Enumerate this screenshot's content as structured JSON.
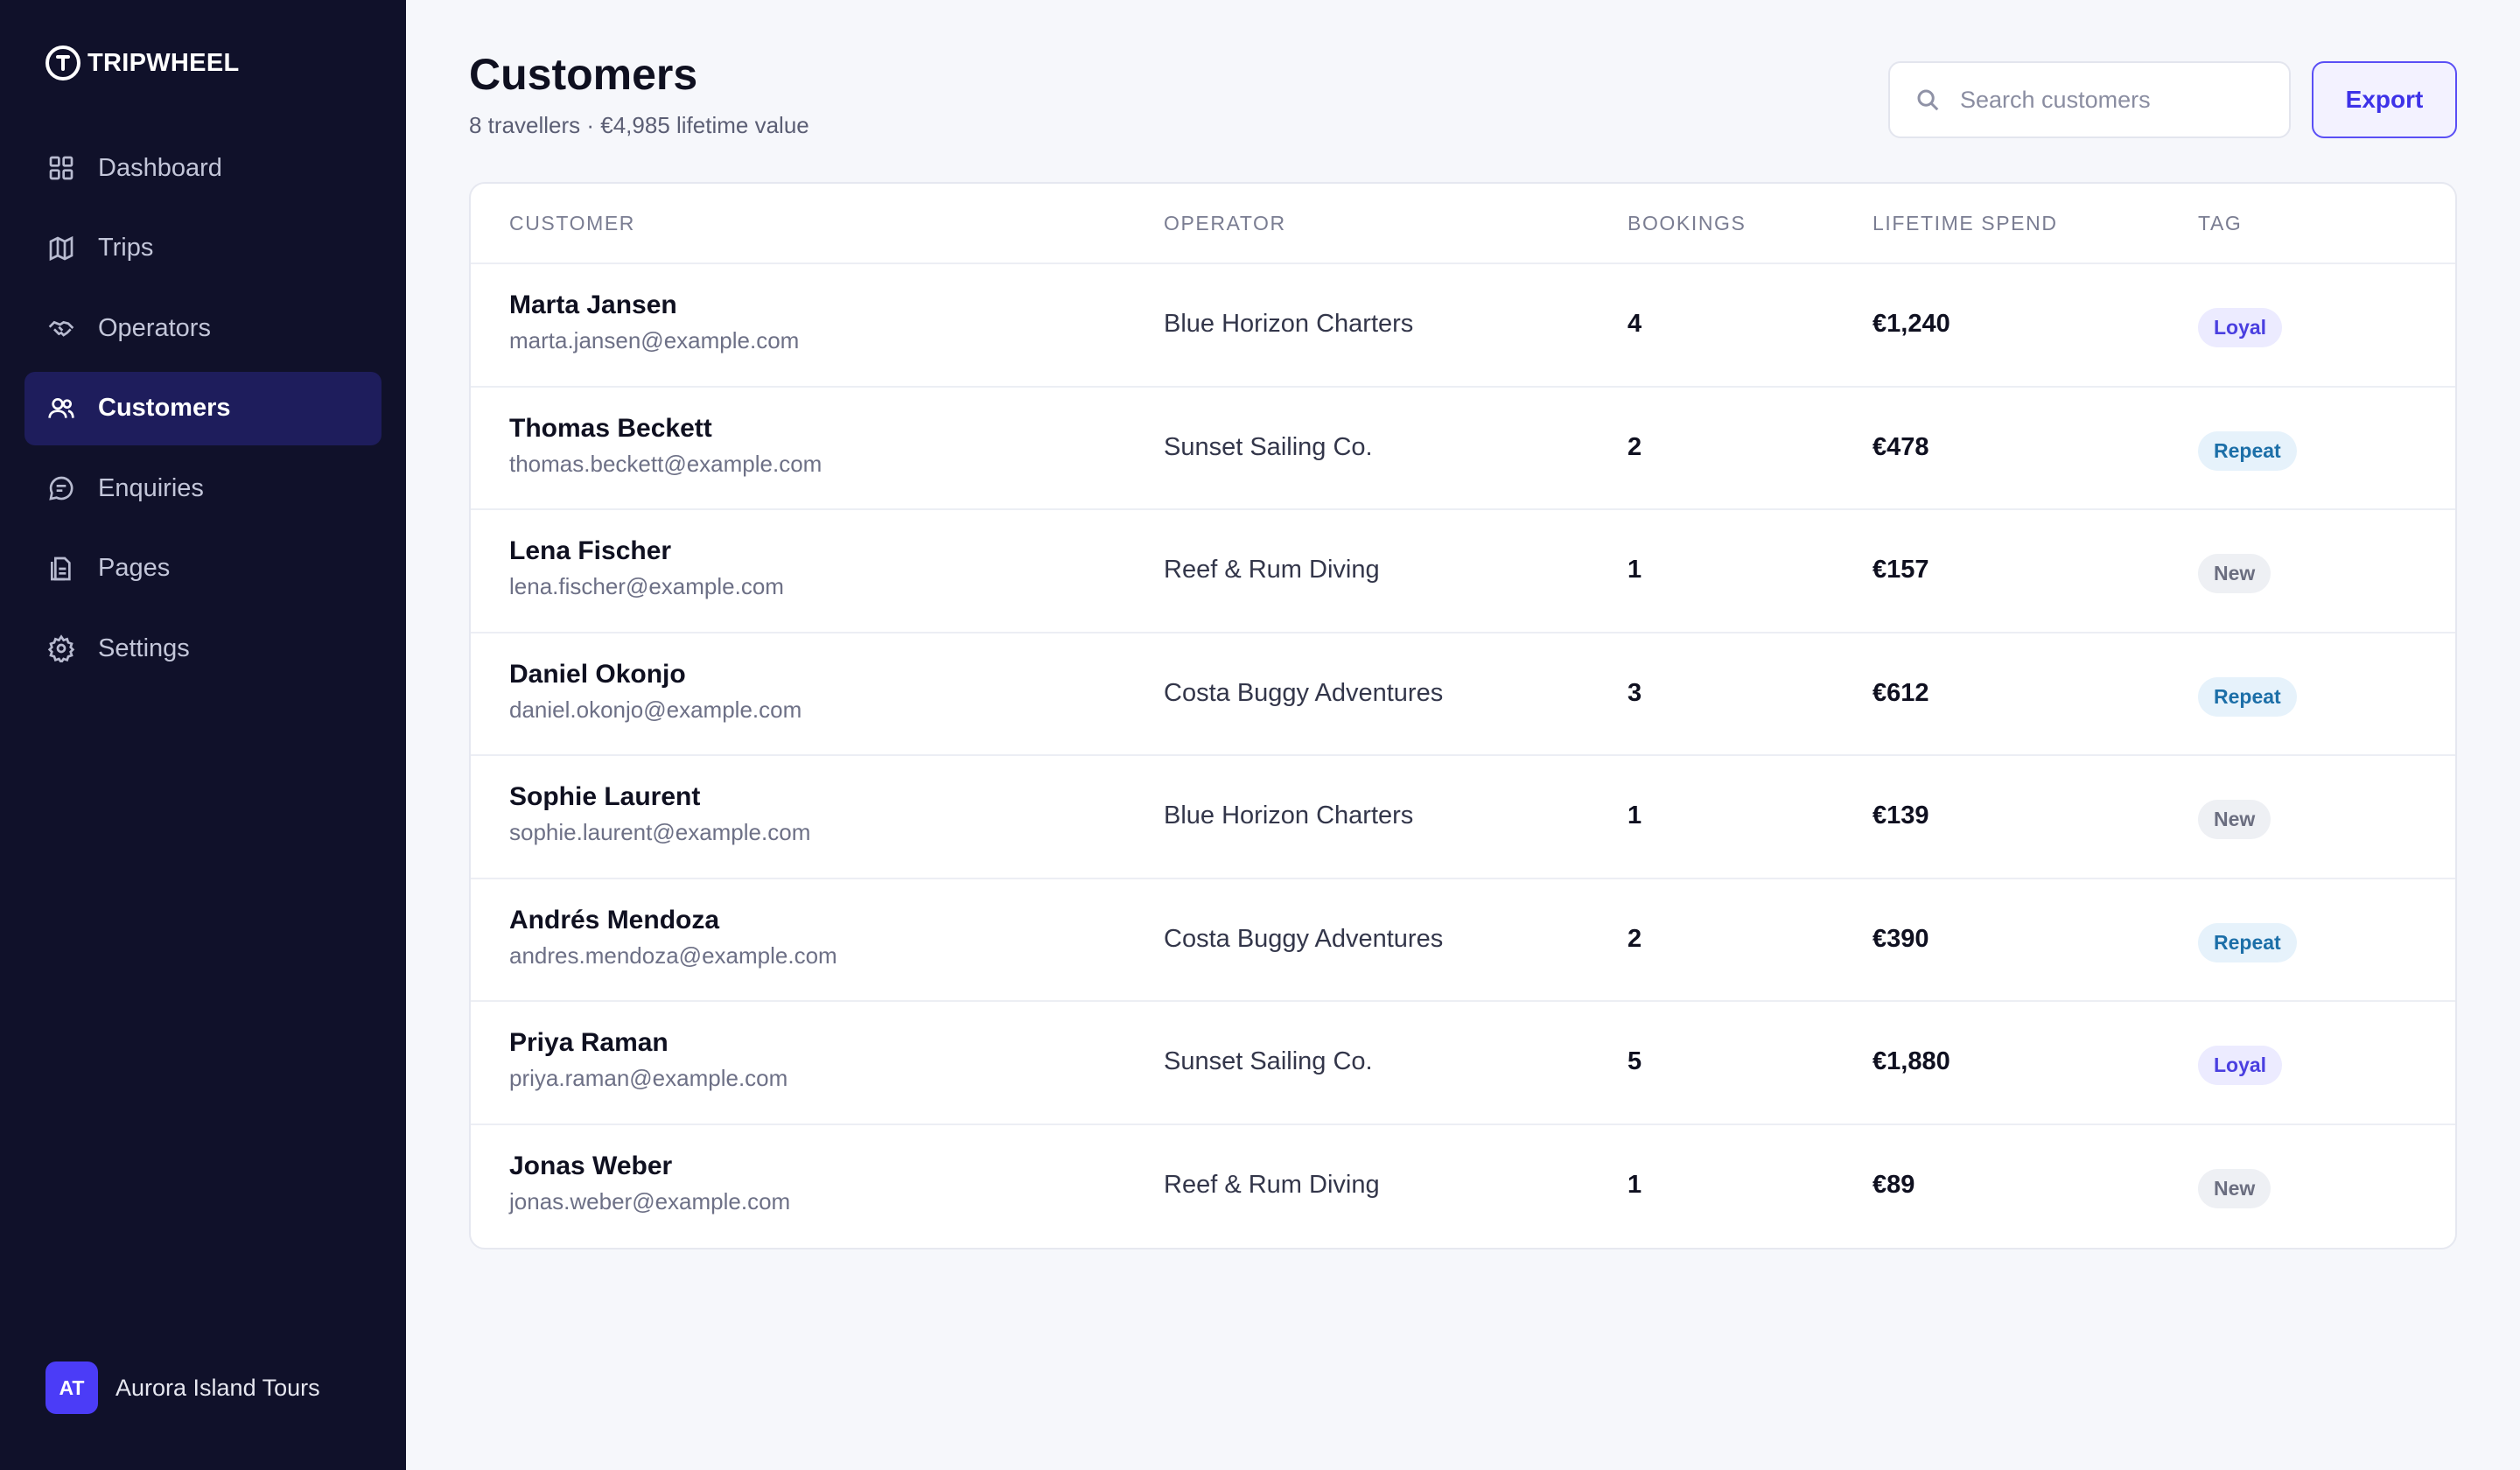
{
  "brand": {
    "name": "TRIPWHEEL"
  },
  "nav": [
    {
      "label": "Dashboard",
      "icon": "grid-icon",
      "active": false
    },
    {
      "label": "Trips",
      "icon": "map-icon",
      "active": false
    },
    {
      "label": "Operators",
      "icon": "handshake-icon",
      "active": false
    },
    {
      "label": "Customers",
      "icon": "users-icon",
      "active": true
    },
    {
      "label": "Enquiries",
      "icon": "chat-icon",
      "active": false
    },
    {
      "label": "Pages",
      "icon": "document-icon",
      "active": false
    },
    {
      "label": "Settings",
      "icon": "gear-icon",
      "active": false
    }
  ],
  "account": {
    "initials": "AT",
    "name": "Aurora Island Tours"
  },
  "header": {
    "title": "Customers",
    "subtitle": "8 travellers · €4,985 lifetime value",
    "search_placeholder": "Search customers",
    "search_value": "",
    "export_label": "Export"
  },
  "table": {
    "columns": [
      "CUSTOMER",
      "OPERATOR",
      "BOOKINGS",
      "LIFETIME SPEND",
      "TAG"
    ],
    "rows": [
      {
        "name": "Marta Jansen",
        "email": "marta.jansen@example.com",
        "operator": "Blue Horizon Charters",
        "bookings": "4",
        "spend": "€1,240",
        "tag": "Loyal",
        "tag_kind": "loyal"
      },
      {
        "name": "Thomas Beckett",
        "email": "thomas.beckett@example.com",
        "operator": "Sunset Sailing Co.",
        "bookings": "2",
        "spend": "€478",
        "tag": "Repeat",
        "tag_kind": "repeat"
      },
      {
        "name": "Lena Fischer",
        "email": "lena.fischer@example.com",
        "operator": "Reef & Rum Diving",
        "bookings": "1",
        "spend": "€157",
        "tag": "New",
        "tag_kind": "new"
      },
      {
        "name": "Daniel Okonjo",
        "email": "daniel.okonjo@example.com",
        "operator": "Costa Buggy Adventures",
        "bookings": "3",
        "spend": "€612",
        "tag": "Repeat",
        "tag_kind": "repeat"
      },
      {
        "name": "Sophie Laurent",
        "email": "sophie.laurent@example.com",
        "operator": "Blue Horizon Charters",
        "bookings": "1",
        "spend": "€139",
        "tag": "New",
        "tag_kind": "new"
      },
      {
        "name": "Andrés Mendoza",
        "email": "andres.mendoza@example.com",
        "operator": "Costa Buggy Adventures",
        "bookings": "2",
        "spend": "€390",
        "tag": "Repeat",
        "tag_kind": "repeat"
      },
      {
        "name": "Priya Raman",
        "email": "priya.raman@example.com",
        "operator": "Sunset Sailing Co.",
        "bookings": "5",
        "spend": "€1,880",
        "tag": "Loyal",
        "tag_kind": "loyal"
      },
      {
        "name": "Jonas Weber",
        "email": "jonas.weber@example.com",
        "operator": "Reef & Rum Diving",
        "bookings": "1",
        "spend": "€89",
        "tag": "New",
        "tag_kind": "new"
      }
    ]
  },
  "colors": {
    "sidebar_bg": "#10112a",
    "active_nav_bg": "#1e1d5c",
    "accent": "#4b3cf7",
    "page_bg": "#f6f7fb"
  }
}
